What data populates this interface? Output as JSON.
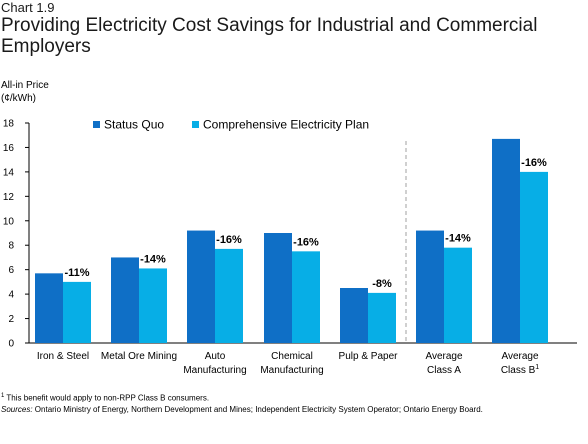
{
  "header": {
    "label": "Chart 1.9",
    "title": "Providing Electricity Cost Savings for Industrial and Commercial Employers"
  },
  "colors": {
    "status_quo": "#0f6fc6",
    "plan": "#07aee6",
    "separator": "#a0a0a0"
  },
  "chart_data": {
    "type": "bar",
    "ylabel_line1": "All-in Price",
    "ylabel_line2": "(¢/kWh)",
    "ylim": [
      0,
      18
    ],
    "yticks": [
      0,
      2,
      4,
      6,
      8,
      10,
      12,
      14,
      16,
      18
    ],
    "legend_position": "top",
    "categories": [
      [
        "Iron & Steel"
      ],
      [
        "Metal Ore Mining"
      ],
      [
        "Auto",
        "Manufacturing"
      ],
      [
        "Chemical",
        "Manufacturing"
      ],
      [
        "Pulp & Paper"
      ],
      [
        "Average",
        "Class A"
      ],
      [
        "Average",
        "Class B"
      ]
    ],
    "category_superscripts": [
      "",
      "",
      "",
      "",
      "",
      "",
      "1"
    ],
    "series": [
      {
        "name": "Status Quo",
        "values": [
          5.7,
          7.0,
          9.2,
          9.0,
          4.5,
          9.2,
          16.7
        ]
      },
      {
        "name": "Comprehensive Electricity Plan",
        "values": [
          5.0,
          6.1,
          7.7,
          7.5,
          4.1,
          7.8,
          14.0
        ]
      }
    ],
    "data_labels": [
      "-11%",
      "-14%",
      "-16%",
      "-16%",
      "-8%",
      "-14%",
      "-16%"
    ]
  },
  "footer": {
    "footnote_mark": "1",
    "footnote_text": " This benefit would apply to non-RPP Class B consumers.",
    "sources_label": "Sources:",
    "sources_text": " Ontario Ministry of Energy, Northern Development and Mines; Independent Electricity System Operator; Ontario Energy Board."
  }
}
